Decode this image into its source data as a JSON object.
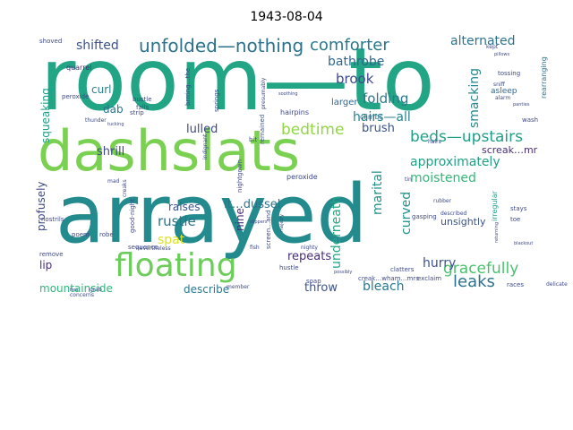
{
  "chart_data": {
    "type": "wordcloud",
    "title": "1943-08-04",
    "colormap": "viridis",
    "background": "#ffffff",
    "words": [
      {
        "text": "room—to",
        "color": "#21a585"
      },
      {
        "text": "arrayed",
        "color": "#238a8d"
      },
      {
        "text": "dashslats",
        "color": "#7ad151"
      },
      {
        "text": "floating",
        "color": "#6ccd5a"
      },
      {
        "text": "unfolded—nothing",
        "color": "#2c728e"
      },
      {
        "text": "comforter",
        "color": "#2a788e"
      },
      {
        "text": "beds—upstairs",
        "color": "#1f9f88"
      },
      {
        "text": "gracefully",
        "color": "#4ac16d"
      },
      {
        "text": "alternated",
        "color": "#2c728e"
      },
      {
        "text": "shifted",
        "color": "#3b528b"
      },
      {
        "text": "bathrobe",
        "color": "#31668e"
      },
      {
        "text": "brook",
        "color": "#3e4989"
      },
      {
        "text": "folding",
        "color": "#2a788e"
      },
      {
        "text": "hairs—all",
        "color": "#26828e"
      },
      {
        "text": "approximately",
        "color": "#1fa187"
      },
      {
        "text": "moistened",
        "color": "#35b779"
      },
      {
        "text": "bedtime",
        "color": "#90d743"
      },
      {
        "text": "smacking",
        "color": "#23898e"
      },
      {
        "text": "underneath",
        "color": "#22a884"
      },
      {
        "text": "marital",
        "color": "#21918c"
      },
      {
        "text": "curved",
        "color": "#20928c"
      },
      {
        "text": "hurry",
        "color": "#3b528b"
      },
      {
        "text": "leaks",
        "color": "#2c728e"
      },
      {
        "text": "repeats",
        "color": "#472d7b"
      },
      {
        "text": "bleach",
        "color": "#2a788e"
      },
      {
        "text": "throw",
        "color": "#3b528b"
      },
      {
        "text": "mountainside",
        "color": "#31b57b"
      },
      {
        "text": "describe",
        "color": "#2a788e"
      },
      {
        "text": "rustle",
        "color": "#2c728e"
      },
      {
        "text": "spat",
        "color": "#dde318"
      },
      {
        "text": "raises",
        "color": "#3b528b"
      },
      {
        "text": "it…dussel",
        "color": "#2c728e"
      },
      {
        "text": "lulled",
        "color": "#3e4989"
      },
      {
        "text": "shrill",
        "color": "#3e4989"
      },
      {
        "text": "brush",
        "color": "#3b528b"
      },
      {
        "text": "screak…mr",
        "color": "#472d7b"
      },
      {
        "text": "dab",
        "color": "#2c728e"
      },
      {
        "text": "curl",
        "color": "#26828e"
      },
      {
        "text": "squeaking",
        "color": "#1f9e89"
      },
      {
        "text": "profusely",
        "color": "#3e4989"
      },
      {
        "text": "lip",
        "color": "#472d7b"
      },
      {
        "text": "nine",
        "color": "#472d7b"
      },
      {
        "text": "larger",
        "color": "#31668e"
      },
      {
        "text": "rearranging",
        "color": "#2c728e"
      },
      {
        "text": "asleep",
        "color": "#31668e"
      },
      {
        "text": "unsightly",
        "color": "#3b528b"
      },
      {
        "text": "irregular",
        "color": "#1f9e89"
      },
      {
        "text": "quarrel",
        "color": "#472d7b"
      },
      {
        "text": "peroxide",
        "color": "#3e4989"
      },
      {
        "text": "strip",
        "color": "#3e4989"
      },
      {
        "text": "bustle",
        "color": "#3e4989"
      },
      {
        "text": "falls",
        "color": "#3e4989"
      },
      {
        "text": "hairpins",
        "color": "#3e4989"
      },
      {
        "text": "climbs",
        "color": "#2c728e"
      },
      {
        "text": "shoved",
        "color": "#3e4989"
      },
      {
        "text": "tossing",
        "color": "#3e4989"
      },
      {
        "text": "remained",
        "color": "#3b528b"
      },
      {
        "text": "nightgown",
        "color": "#3e4989"
      },
      {
        "text": "springs",
        "color": "#3e4989"
      },
      {
        "text": "brrring…the",
        "color": "#3e4989"
      },
      {
        "text": "thunder",
        "color": "#3e4989"
      },
      {
        "text": "hairs",
        "color": "#3e4989"
      },
      {
        "text": "wash",
        "color": "#3e4989"
      },
      {
        "text": "bit",
        "color": "#3e4989"
      },
      {
        "text": "nostrils",
        "color": "#3e4989"
      },
      {
        "text": "poem",
        "color": "#3e4989"
      },
      {
        "text": "robe",
        "color": "#3e4989"
      },
      {
        "text": "sequence",
        "color": "#3e4989"
      },
      {
        "text": "remove",
        "color": "#3e4989"
      },
      {
        "text": "nevertheless",
        "color": "#3e4989"
      },
      {
        "text": "fish",
        "color": "#3e4989"
      },
      {
        "text": "hustle",
        "color": "#3e4989"
      },
      {
        "text": "soap",
        "color": "#3e4989"
      },
      {
        "text": "clatters",
        "color": "#3e4989"
      },
      {
        "text": "creak…wham…mrs",
        "color": "#3e4989"
      },
      {
        "text": "exclaim",
        "color": "#3e4989"
      },
      {
        "text": "races",
        "color": "#3e4989"
      },
      {
        "text": "delicate",
        "color": "#3e4989"
      },
      {
        "text": "stays",
        "color": "#3e4989"
      },
      {
        "text": "toe",
        "color": "#3e4989"
      },
      {
        "text": "described",
        "color": "#3e4989"
      },
      {
        "text": "rubber",
        "color": "#3e4989"
      },
      {
        "text": "tin",
        "color": "#3e4989"
      },
      {
        "text": "gasping",
        "color": "#3e4989"
      },
      {
        "text": "kept",
        "color": "#3e4989"
      },
      {
        "text": "pillows",
        "color": "#3e4989"
      },
      {
        "text": "sniff",
        "color": "#3e4989"
      },
      {
        "text": "screen…and",
        "color": "#3e4989"
      },
      {
        "text": "nighty",
        "color": "#3e4989"
      },
      {
        "text": "good-night",
        "color": "#3e4989"
      },
      {
        "text": "concerns",
        "color": "#3e4989"
      },
      {
        "text": "grab",
        "color": "#3e4989"
      },
      {
        "text": "flea",
        "color": "#3e4989"
      },
      {
        "text": "member",
        "color": "#3e4989"
      },
      {
        "text": "indignant",
        "color": "#3e4989"
      },
      {
        "text": "mad",
        "color": "#3e4989"
      },
      {
        "text": "creaks",
        "color": "#3e4989"
      },
      {
        "text": "presumably",
        "color": "#3e4989"
      },
      {
        "text": "alarm",
        "color": "#3e4989"
      },
      {
        "text": "panties",
        "color": "#3e4989"
      },
      {
        "text": "blackout",
        "color": "#3e4989"
      },
      {
        "text": "returning",
        "color": "#3e4989"
      },
      {
        "text": "soothing",
        "color": "#3e4989"
      },
      {
        "text": "slippers",
        "color": "#3e4989"
      },
      {
        "text": "majesty",
        "color": "#3e4989"
      },
      {
        "text": "possibly",
        "color": "#3e4989"
      },
      {
        "text": "tucking",
        "color": "#3e4989"
      },
      {
        "text": "peroxide",
        "color": "#3e4989"
      }
    ]
  }
}
